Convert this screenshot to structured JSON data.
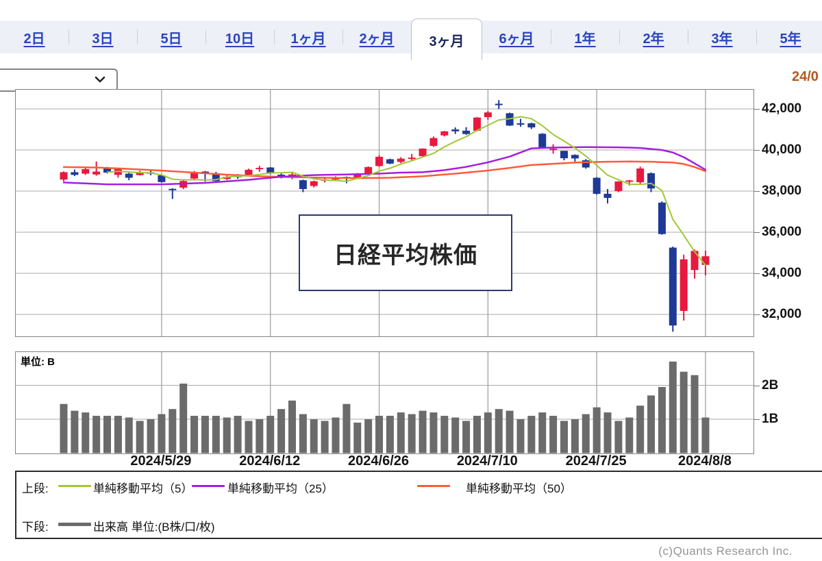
{
  "window": {
    "date_display": "24/0"
  },
  "tabs": [
    {
      "label": "2日",
      "name": "tab-2d",
      "active": false
    },
    {
      "label": "3日",
      "name": "tab-3d",
      "active": false
    },
    {
      "label": "5日",
      "name": "tab-5d",
      "active": false
    },
    {
      "label": "10日",
      "name": "tab-10d",
      "active": false
    },
    {
      "label": "1ヶ月",
      "name": "tab-1m",
      "active": false
    },
    {
      "label": "2ヶ月",
      "name": "tab-2m",
      "active": false
    },
    {
      "label": "3ヶ月",
      "name": "tab-3m",
      "active": true
    },
    {
      "label": "6ヶ月",
      "name": "tab-6m",
      "active": false
    },
    {
      "label": "1年",
      "name": "tab-1y",
      "active": false
    },
    {
      "label": "2年",
      "name": "tab-2y",
      "active": false
    },
    {
      "label": "3年",
      "name": "tab-3y",
      "active": false
    },
    {
      "label": "5年",
      "name": "tab-5y",
      "active": false
    }
  ],
  "dropdown": {
    "value": ""
  },
  "overlay_label": "日経平均株価",
  "volume_unit": "単位: B",
  "legend": {
    "upper_label": "上段:",
    "lower_label": "下段:",
    "series": [
      {
        "name": "単純移動平均（5）",
        "color": "#a0c832"
      },
      {
        "name": "単純移動平均（25）",
        "color": "#a21fe0"
      },
      {
        "name": "単純移動平均（50）",
        "color": "#ff5a3a"
      }
    ],
    "volume_series": {
      "name": "出来高 単位:(B株/口/枚)",
      "color": "#6b6b6b"
    }
  },
  "copyright": "(c)Quants Research Inc.",
  "chart_data": {
    "type": "candlestick",
    "title": "日経平均株価",
    "up_color": "#e8193f",
    "down_color": "#1e3a96",
    "grid_color": "#a9a9a9",
    "y_axis": {
      "ticks": [
        {
          "v": 42000,
          "label": "42,000"
        },
        {
          "v": 40000,
          "label": "40,000"
        },
        {
          "v": 38000,
          "label": "38,000"
        },
        {
          "v": 36000,
          "label": "36,000"
        },
        {
          "v": 34000,
          "label": "34,000"
        },
        {
          "v": 32000,
          "label": "32,000"
        }
      ]
    },
    "volume_y_axis": {
      "unit": "B",
      "ticks": [
        {
          "v": 2,
          "label": "2B"
        },
        {
          "v": 1,
          "label": "1B"
        }
      ]
    },
    "x_axis": {
      "ticks": [
        {
          "index": 9,
          "label": "2024/5/29"
        },
        {
          "index": 19,
          "label": "2024/6/12"
        },
        {
          "index": 29,
          "label": "2024/6/26"
        },
        {
          "index": 39,
          "label": "2024/7/10"
        },
        {
          "index": 49,
          "label": "2024/7/25"
        },
        {
          "index": 59,
          "label": "2024/8/8"
        }
      ]
    },
    "dates": [
      "5/16",
      "5/17",
      "5/20",
      "5/21",
      "5/22",
      "5/23",
      "5/24",
      "5/27",
      "5/28",
      "5/29",
      "5/30",
      "5/31",
      "6/3",
      "6/4",
      "6/5",
      "6/6",
      "6/7",
      "6/10",
      "6/11",
      "6/12",
      "6/13",
      "6/14",
      "6/17",
      "6/18",
      "6/19",
      "6/20",
      "6/21",
      "6/24",
      "6/25",
      "6/26",
      "6/27",
      "6/28",
      "7/1",
      "7/2",
      "7/3",
      "7/4",
      "7/5",
      "7/8",
      "7/9",
      "7/10",
      "7/11",
      "7/12",
      "7/16",
      "7/17",
      "7/18",
      "7/19",
      "7/22",
      "7/23",
      "7/24",
      "7/25",
      "7/26",
      "7/29",
      "7/30",
      "7/31",
      "8/1",
      "8/2",
      "8/5",
      "8/6",
      "8/7",
      "8/8"
    ],
    "ohlc": [
      [
        38560,
        38960,
        38480,
        38920
      ],
      [
        38920,
        39050,
        38730,
        38790
      ],
      [
        38850,
        39150,
        38790,
        39070
      ],
      [
        38810,
        39440,
        38750,
        38950
      ],
      [
        39100,
        39180,
        38860,
        38900
      ],
      [
        38790,
        39110,
        38660,
        39100
      ],
      [
        38850,
        38890,
        38530,
        38650
      ],
      [
        38780,
        38990,
        38760,
        38900
      ],
      [
        38910,
        39010,
        38770,
        38860
      ],
      [
        38770,
        38790,
        38410,
        38440
      ],
      [
        38110,
        38140,
        37620,
        38050
      ],
      [
        38170,
        38580,
        38090,
        38490
      ],
      [
        38610,
        38980,
        38550,
        38920
      ],
      [
        38950,
        38980,
        38460,
        38840
      ],
      [
        38870,
        38930,
        38430,
        38490
      ],
      [
        38590,
        38780,
        38540,
        38700
      ],
      [
        38790,
        38830,
        38600,
        38680
      ],
      [
        38770,
        39090,
        38730,
        39040
      ],
      [
        39070,
        39230,
        38940,
        39130
      ],
      [
        39150,
        39170,
        38820,
        38880
      ],
      [
        38800,
        38880,
        38620,
        38720
      ],
      [
        38670,
        38940,
        38580,
        38810
      ],
      [
        38530,
        38560,
        37950,
        38100
      ],
      [
        38250,
        38510,
        38180,
        38480
      ],
      [
        38550,
        38640,
        38420,
        38570
      ],
      [
        38620,
        38720,
        38490,
        38630
      ],
      [
        38690,
        38710,
        38380,
        38600
      ],
      [
        38660,
        38880,
        38580,
        38800
      ],
      [
        38850,
        39200,
        38830,
        39170
      ],
      [
        39220,
        39750,
        39180,
        39670
      ],
      [
        39550,
        39580,
        39310,
        39340
      ],
      [
        39420,
        39650,
        39360,
        39580
      ],
      [
        39610,
        39810,
        39460,
        39630
      ],
      [
        39700,
        40080,
        39660,
        40070
      ],
      [
        40200,
        40660,
        40150,
        40580
      ],
      [
        40710,
        40930,
        40660,
        40910
      ],
      [
        41000,
        41100,
        40780,
        40910
      ],
      [
        40940,
        41110,
        40740,
        40780
      ],
      [
        40940,
        41600,
        40910,
        41580
      ],
      [
        41600,
        41890,
        41470,
        41830
      ],
      [
        42250,
        42430,
        41990,
        42220
      ],
      [
        41790,
        41820,
        41170,
        41190
      ],
      [
        41300,
        41520,
        41130,
        41280
      ],
      [
        41300,
        41330,
        41020,
        41100
      ],
      [
        40790,
        40820,
        40100,
        40130
      ],
      [
        40030,
        40280,
        39820,
        40060
      ],
      [
        39960,
        39960,
        39500,
        39600
      ],
      [
        39760,
        39790,
        39440,
        39590
      ],
      [
        39500,
        39560,
        39090,
        39150
      ],
      [
        38650,
        38680,
        37830,
        37870
      ],
      [
        37870,
        38100,
        37400,
        37670
      ],
      [
        38000,
        38480,
        37950,
        38470
      ],
      [
        38460,
        38540,
        38270,
        38520
      ],
      [
        38430,
        39190,
        38350,
        39100
      ],
      [
        38870,
        38910,
        37950,
        38130
      ],
      [
        37440,
        37500,
        35880,
        35910
      ],
      [
        35250,
        35300,
        31160,
        31460
      ],
      [
        32170,
        34910,
        31700,
        34680
      ],
      [
        34160,
        35160,
        33740,
        35090
      ],
      [
        34410,
        35100,
        33900,
        34830
      ]
    ],
    "volume": [
      1.45,
      1.25,
      1.2,
      1.1,
      1.1,
      1.1,
      1.05,
      0.95,
      1.0,
      1.15,
      1.3,
      2.05,
      1.1,
      1.1,
      1.1,
      1.05,
      1.1,
      0.95,
      1.0,
      1.1,
      1.3,
      1.55,
      1.15,
      1.0,
      0.95,
      1.05,
      1.45,
      0.9,
      1.0,
      1.1,
      1.1,
      1.2,
      1.15,
      1.25,
      1.2,
      1.1,
      1.05,
      0.95,
      1.1,
      1.2,
      1.3,
      1.25,
      1.0,
      1.1,
      1.2,
      1.1,
      0.95,
      1.0,
      1.15,
      1.35,
      1.2,
      0.95,
      1.05,
      1.4,
      1.7,
      1.95,
      2.7,
      2.4,
      2.3,
      1.05
    ],
    "sma": {
      "sma5": {
        "window": 5,
        "color": "#a0c832"
      },
      "sma25": {
        "color": "#a21fe0",
        "points": [
          [
            0,
            38420
          ],
          [
            4,
            38330
          ],
          [
            9,
            38330
          ],
          [
            13,
            38400
          ],
          [
            17,
            38550
          ],
          [
            20,
            38700
          ],
          [
            23,
            38780
          ],
          [
            26,
            38810
          ],
          [
            29,
            38850
          ],
          [
            31,
            38900
          ],
          [
            33,
            38920
          ],
          [
            35,
            39020
          ],
          [
            37,
            39180
          ],
          [
            39,
            39400
          ],
          [
            41,
            39680
          ],
          [
            43,
            40080
          ],
          [
            45,
            40120
          ],
          [
            48,
            40140
          ],
          [
            51,
            40130
          ],
          [
            53,
            40100
          ],
          [
            55,
            40000
          ],
          [
            56,
            39880
          ],
          [
            57,
            39650
          ],
          [
            58,
            39350
          ],
          [
            59,
            39040
          ]
        ]
      },
      "sma50": {
        "color": "#ff5a3a",
        "points": [
          [
            0,
            39170
          ],
          [
            3,
            39150
          ],
          [
            6,
            39080
          ],
          [
            9,
            39000
          ],
          [
            12,
            38900
          ],
          [
            15,
            38800
          ],
          [
            18,
            38720
          ],
          [
            21,
            38680
          ],
          [
            24,
            38650
          ],
          [
            27,
            38630
          ],
          [
            30,
            38650
          ],
          [
            33,
            38720
          ],
          [
            36,
            38850
          ],
          [
            39,
            39000
          ],
          [
            41,
            39130
          ],
          [
            43,
            39270
          ],
          [
            45,
            39330
          ],
          [
            47,
            39390
          ],
          [
            50,
            39430
          ],
          [
            52,
            39440
          ],
          [
            54,
            39430
          ],
          [
            56,
            39390
          ],
          [
            57,
            39320
          ],
          [
            58,
            39170
          ],
          [
            59,
            38970
          ]
        ]
      }
    }
  }
}
